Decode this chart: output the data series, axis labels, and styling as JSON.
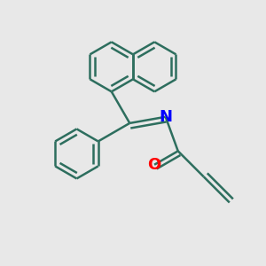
{
  "bg_color": "#e8e8e8",
  "bond_color": "#2d6e5e",
  "N_color": "#0000ff",
  "O_color": "#ff0000",
  "bond_width": 1.8,
  "dbo": 0.018,
  "font_size": 13,
  "figsize": [
    3.0,
    3.0
  ],
  "dpi": 100
}
